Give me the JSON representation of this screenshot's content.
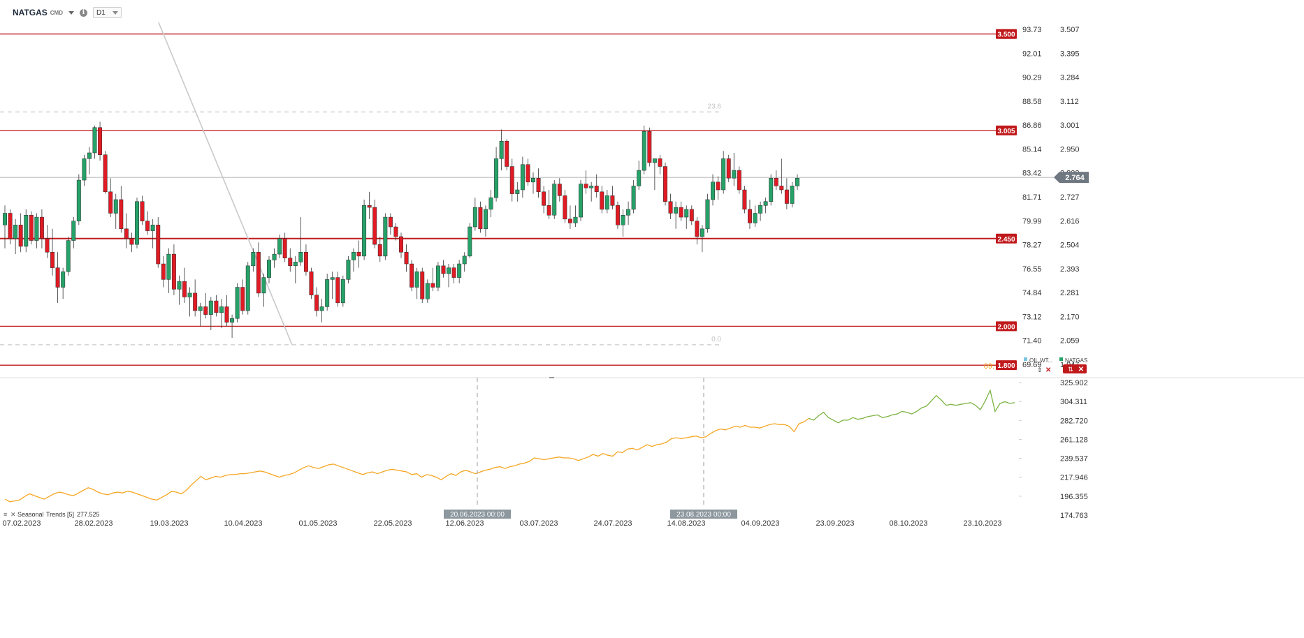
{
  "header": {
    "symbol": "NATGAS",
    "symbol_tag": "CMD",
    "timeframe": "D1"
  },
  "colors": {
    "up": "#26a269",
    "down": "#e01b24",
    "level": "#c0191c",
    "fib": "#c8c8c8",
    "lower_orange": "#f5a623",
    "lower_green": "#7cb342"
  },
  "chart_data": [
    {
      "type": "candlestick",
      "series_name": "NATGAS",
      "right_axis_ticks": [
        "3.507",
        "3.395",
        "3.284",
        "3.112",
        "3.001",
        "2.950",
        "2.838",
        "2.727",
        "2.616",
        "2.504",
        "2.393",
        "2.281",
        "2.170",
        "2.059",
        "1.947"
      ],
      "right_axis_range": [
        1.84,
        3.56
      ],
      "left_axis_ticks": [
        "93.73",
        "92.01",
        "90.29",
        "88.58",
        "86.86",
        "85.14",
        "83.42",
        "81.71",
        "79.99",
        "78.27",
        "76.55",
        "74.84",
        "73.12",
        "71.40",
        "69.69"
      ],
      "current_price": "2.764",
      "horizontal_levels": [
        {
          "label": "3.500",
          "value": 3.5
        },
        {
          "label": "3.005",
          "value": 3.005
        },
        {
          "label": "2.450",
          "value": 2.45
        },
        {
          "label": "2.000",
          "value": 2.0
        },
        {
          "label": "1.800",
          "value": 1.8
        }
      ],
      "fib_levels": [
        {
          "label": "23.6",
          "value": 3.1
        },
        {
          "label": "0.0",
          "value": 1.905
        }
      ],
      "trendline": [
        {
          "x": "2023-03-12",
          "y": 3.56
        },
        {
          "x": "2023-04-13",
          "y": 1.905
        }
      ],
      "legend": [
        "OIL.WT...",
        "NATGAS"
      ],
      "x_tick_labels": [
        "07.02.2023",
        "28.02.2023",
        "19.03.2023",
        "10.04.2023",
        "01.05.2023",
        "22.05.2023",
        "12.06.2023",
        "03.07.2023",
        "24.07.2023",
        "14.08.2023",
        "04.09.2023",
        "23.09.2023",
        "08.10.2023",
        "23.10.2023"
      ],
      "crosshair_labels": [
        "20.06.2023 00:00",
        "23.08.2023 00:00"
      ],
      "side_label": "09:",
      "ohlc": [
        [
          2.52,
          2.62,
          2.4,
          2.58
        ],
        [
          2.58,
          2.6,
          2.42,
          2.45
        ],
        [
          2.45,
          2.55,
          2.37,
          2.52
        ],
        [
          2.52,
          2.58,
          2.38,
          2.41
        ],
        [
          2.41,
          2.6,
          2.38,
          2.57
        ],
        [
          2.57,
          2.59,
          2.42,
          2.44
        ],
        [
          2.44,
          2.58,
          2.4,
          2.56
        ],
        [
          2.56,
          2.6,
          2.4,
          2.45
        ],
        [
          2.45,
          2.52,
          2.35,
          2.38
        ],
        [
          2.38,
          2.5,
          2.26,
          2.3
        ],
        [
          2.3,
          2.38,
          2.12,
          2.2
        ],
        [
          2.2,
          2.3,
          2.14,
          2.28
        ],
        [
          2.28,
          2.46,
          2.26,
          2.44
        ],
        [
          2.44,
          2.56,
          2.4,
          2.54
        ],
        [
          2.54,
          2.78,
          2.52,
          2.75
        ],
        [
          2.75,
          2.88,
          2.72,
          2.86
        ],
        [
          2.86,
          2.92,
          2.78,
          2.89
        ],
        [
          2.89,
          3.03,
          2.86,
          3.02
        ],
        [
          3.02,
          3.05,
          2.85,
          2.88
        ],
        [
          2.88,
          2.9,
          2.68,
          2.69
        ],
        [
          2.69,
          2.76,
          2.56,
          2.58
        ],
        [
          2.58,
          2.68,
          2.5,
          2.65
        ],
        [
          2.65,
          2.72,
          2.48,
          2.5
        ],
        [
          2.5,
          2.58,
          2.4,
          2.45
        ],
        [
          2.45,
          2.48,
          2.38,
          2.42
        ],
        [
          2.42,
          2.66,
          2.4,
          2.64
        ],
        [
          2.64,
          2.67,
          2.52,
          2.54
        ],
        [
          2.54,
          2.59,
          2.47,
          2.49
        ],
        [
          2.49,
          2.55,
          2.4,
          2.52
        ],
        [
          2.52,
          2.56,
          2.3,
          2.32
        ],
        [
          2.32,
          2.36,
          2.2,
          2.24
        ],
        [
          2.24,
          2.4,
          2.17,
          2.37
        ],
        [
          2.37,
          2.42,
          2.16,
          2.19
        ],
        [
          2.19,
          2.26,
          2.11,
          2.23
        ],
        [
          2.23,
          2.3,
          2.12,
          2.15
        ],
        [
          2.15,
          2.2,
          2.05,
          2.17
        ],
        [
          2.17,
          2.24,
          2.05,
          2.08
        ],
        [
          2.08,
          2.12,
          2.0,
          2.1
        ],
        [
          2.1,
          2.17,
          2.04,
          2.06
        ],
        [
          2.06,
          2.15,
          1.98,
          2.13
        ],
        [
          2.13,
          2.16,
          2.05,
          2.07
        ],
        [
          2.07,
          2.14,
          1.99,
          2.1
        ],
        [
          2.1,
          2.16,
          2.0,
          2.02
        ],
        [
          2.02,
          2.06,
          1.94,
          2.04
        ],
        [
          2.04,
          2.22,
          2.02,
          2.2
        ],
        [
          2.2,
          2.24,
          2.06,
          2.08
        ],
        [
          2.08,
          2.33,
          2.06,
          2.31
        ],
        [
          2.31,
          2.4,
          2.28,
          2.38
        ],
        [
          2.38,
          2.43,
          2.15,
          2.17
        ],
        [
          2.17,
          2.27,
          2.1,
          2.25
        ],
        [
          2.25,
          2.36,
          2.22,
          2.34
        ],
        [
          2.34,
          2.4,
          2.3,
          2.37
        ],
        [
          2.37,
          2.47,
          2.35,
          2.45
        ],
        [
          2.45,
          2.48,
          2.33,
          2.35
        ],
        [
          2.35,
          2.4,
          2.28,
          2.31
        ],
        [
          2.31,
          2.36,
          2.22,
          2.33
        ],
        [
          2.33,
          2.56,
          2.31,
          2.38
        ],
        [
          2.38,
          2.42,
          2.26,
          2.28
        ],
        [
          2.28,
          2.3,
          2.14,
          2.16
        ],
        [
          2.16,
          2.2,
          2.05,
          2.08
        ],
        [
          2.08,
          2.14,
          2.02,
          2.1
        ],
        [
          2.1,
          2.27,
          2.08,
          2.24
        ],
        [
          2.24,
          2.28,
          2.14,
          2.25
        ],
        [
          2.25,
          2.28,
          2.1,
          2.12
        ],
        [
          2.12,
          2.26,
          2.1,
          2.24
        ],
        [
          2.24,
          2.36,
          2.22,
          2.34
        ],
        [
          2.34,
          2.4,
          2.28,
          2.38
        ],
        [
          2.38,
          2.44,
          2.3,
          2.36
        ],
        [
          2.36,
          2.65,
          2.34,
          2.62
        ],
        [
          2.62,
          2.69,
          2.55,
          2.61
        ],
        [
          2.61,
          2.65,
          2.4,
          2.42
        ],
        [
          2.42,
          2.46,
          2.33,
          2.36
        ],
        [
          2.36,
          2.58,
          2.34,
          2.56
        ],
        [
          2.56,
          2.58,
          2.47,
          2.51
        ],
        [
          2.51,
          2.53,
          2.44,
          2.46
        ],
        [
          2.46,
          2.48,
          2.35,
          2.38
        ],
        [
          2.38,
          2.42,
          2.28,
          2.32
        ],
        [
          2.32,
          2.34,
          2.18,
          2.2
        ],
        [
          2.2,
          2.3,
          2.14,
          2.28
        ],
        [
          2.28,
          2.3,
          2.12,
          2.14
        ],
        [
          2.14,
          2.24,
          2.12,
          2.22
        ],
        [
          2.22,
          2.3,
          2.18,
          2.2
        ],
        [
          2.2,
          2.33,
          2.18,
          2.31
        ],
        [
          2.31,
          2.34,
          2.25,
          2.27
        ],
        [
          2.27,
          2.32,
          2.2,
          2.3
        ],
        [
          2.3,
          2.32,
          2.22,
          2.25
        ],
        [
          2.25,
          2.34,
          2.22,
          2.32
        ],
        [
          2.32,
          2.38,
          2.28,
          2.36
        ],
        [
          2.36,
          2.53,
          2.35,
          2.51
        ],
        [
          2.51,
          2.66,
          2.49,
          2.61
        ],
        [
          2.61,
          2.64,
          2.48,
          2.5
        ],
        [
          2.5,
          2.62,
          2.46,
          2.6
        ],
        [
          2.6,
          2.7,
          2.56,
          2.66
        ],
        [
          2.66,
          2.92,
          2.64,
          2.86
        ],
        [
          2.86,
          3.01,
          2.8,
          2.95
        ],
        [
          2.95,
          2.96,
          2.8,
          2.82
        ],
        [
          2.82,
          2.86,
          2.64,
          2.68
        ],
        [
          2.68,
          2.74,
          2.64,
          2.7
        ],
        [
          2.7,
          2.87,
          2.66,
          2.83
        ],
        [
          2.83,
          2.86,
          2.72,
          2.74
        ],
        [
          2.74,
          2.79,
          2.68,
          2.76
        ],
        [
          2.76,
          2.81,
          2.66,
          2.69
        ],
        [
          2.69,
          2.72,
          2.58,
          2.62
        ],
        [
          2.62,
          2.7,
          2.55,
          2.57
        ],
        [
          2.57,
          2.75,
          2.55,
          2.73
        ],
        [
          2.73,
          2.76,
          2.64,
          2.67
        ],
        [
          2.67,
          2.7,
          2.53,
          2.55
        ],
        [
          2.55,
          2.62,
          2.5,
          2.53
        ],
        [
          2.53,
          2.62,
          2.51,
          2.56
        ],
        [
          2.56,
          2.75,
          2.54,
          2.73
        ],
        [
          2.73,
          2.8,
          2.68,
          2.71
        ],
        [
          2.71,
          2.74,
          2.64,
          2.72
        ],
        [
          2.72,
          2.78,
          2.66,
          2.69
        ],
        [
          2.69,
          2.72,
          2.58,
          2.6
        ],
        [
          2.6,
          2.7,
          2.58,
          2.67
        ],
        [
          2.67,
          2.72,
          2.6,
          2.62
        ],
        [
          2.62,
          2.64,
          2.5,
          2.52
        ],
        [
          2.52,
          2.6,
          2.46,
          2.57
        ],
        [
          2.57,
          2.64,
          2.52,
          2.6
        ],
        [
          2.6,
          2.75,
          2.58,
          2.72
        ],
        [
          2.72,
          2.85,
          2.7,
          2.8
        ],
        [
          2.8,
          3.03,
          2.78,
          3.0
        ],
        [
          3.0,
          3.02,
          2.82,
          2.84
        ],
        [
          2.84,
          2.86,
          2.7,
          2.86
        ],
        [
          2.86,
          2.88,
          2.78,
          2.82
        ],
        [
          2.82,
          2.84,
          2.62,
          2.64
        ],
        [
          2.64,
          2.68,
          2.55,
          2.58
        ],
        [
          2.58,
          2.64,
          2.5,
          2.61
        ],
        [
          2.61,
          2.64,
          2.54,
          2.56
        ],
        [
          2.56,
          2.62,
          2.5,
          2.6
        ],
        [
          2.6,
          2.62,
          2.52,
          2.54
        ],
        [
          2.54,
          2.56,
          2.42,
          2.46
        ],
        [
          2.46,
          2.52,
          2.38,
          2.5
        ],
        [
          2.5,
          2.68,
          2.48,
          2.65
        ],
        [
          2.65,
          2.78,
          2.62,
          2.74
        ],
        [
          2.74,
          2.77,
          2.65,
          2.7
        ],
        [
          2.7,
          2.9,
          2.68,
          2.86
        ],
        [
          2.86,
          2.88,
          2.74,
          2.76
        ],
        [
          2.76,
          2.89,
          2.72,
          2.8
        ],
        [
          2.8,
          2.82,
          2.68,
          2.7
        ],
        [
          2.7,
          2.72,
          2.58,
          2.6
        ],
        [
          2.6,
          2.65,
          2.5,
          2.53
        ],
        [
          2.53,
          2.62,
          2.51,
          2.58
        ],
        [
          2.58,
          2.64,
          2.54,
          2.62
        ],
        [
          2.62,
          2.66,
          2.58,
          2.64
        ],
        [
          2.64,
          2.78,
          2.62,
          2.76
        ],
        [
          2.76,
          2.8,
          2.7,
          2.72
        ],
        [
          2.72,
          2.86,
          2.68,
          2.7
        ],
        [
          2.7,
          2.76,
          2.6,
          2.63
        ],
        [
          2.63,
          2.74,
          2.61,
          2.72
        ],
        [
          2.72,
          2.78,
          2.7,
          2.76
        ]
      ]
    },
    {
      "type": "line",
      "series_name": "Seasonal Trends",
      "label_prefix": "Seasonal",
      "label_name": "Trends",
      "label_param": "[5]",
      "label_value": "277.525",
      "y_axis_ticks": [
        "325.902",
        "304.311",
        "282.720",
        "261.128",
        "239.537",
        "217.946",
        "196.355",
        "174.763"
      ],
      "ylim": [
        174.763,
        325.902
      ],
      "y": [
        193,
        190,
        191,
        192,
        196,
        199,
        197,
        195,
        193,
        196,
        199,
        201,
        200,
        198,
        197,
        200,
        203,
        206,
        204,
        201,
        199,
        198,
        200,
        201,
        200,
        202,
        201,
        199,
        197,
        195,
        193,
        192,
        195,
        198,
        202,
        201,
        199,
        203,
        209,
        214,
        219,
        215,
        217,
        219,
        218,
        220,
        221,
        221,
        222,
        222,
        223,
        224,
        225,
        224,
        222,
        220,
        218,
        220,
        221,
        223,
        226,
        229,
        231,
        229,
        228,
        230,
        232,
        233,
        231,
        229,
        227,
        225,
        223,
        221,
        223,
        224,
        222,
        224,
        226,
        227,
        226,
        225,
        224,
        221,
        222,
        218,
        221,
        220,
        218,
        215,
        219,
        222,
        220,
        224,
        226,
        224,
        222,
        224,
        226,
        227,
        229,
        230,
        228,
        230,
        231,
        233,
        234,
        236,
        240,
        239,
        238,
        239,
        240,
        241,
        240,
        240,
        239,
        237,
        239,
        241,
        244,
        242,
        245,
        243,
        242,
        247,
        246,
        250,
        251,
        249,
        252,
        255,
        253,
        255,
        256,
        258,
        262,
        263,
        262,
        263,
        264,
        265,
        263,
        264,
        268,
        271,
        273,
        272,
        274,
        276,
        275,
        277,
        275,
        275,
        274,
        276,
        278,
        279,
        278,
        278,
        276,
        270,
        279,
        281,
        285,
        283,
        288,
        292,
        286,
        283,
        280,
        283,
        283,
        286,
        284,
        285,
        287,
        288,
        289,
        286,
        287,
        289,
        290,
        293,
        292,
        290,
        293,
        297,
        299,
        305,
        311,
        306,
        300,
        301,
        300,
        301,
        302,
        303,
        300,
        295,
        305,
        317,
        293,
        302,
        304,
        302,
        303
      ]
    }
  ]
}
